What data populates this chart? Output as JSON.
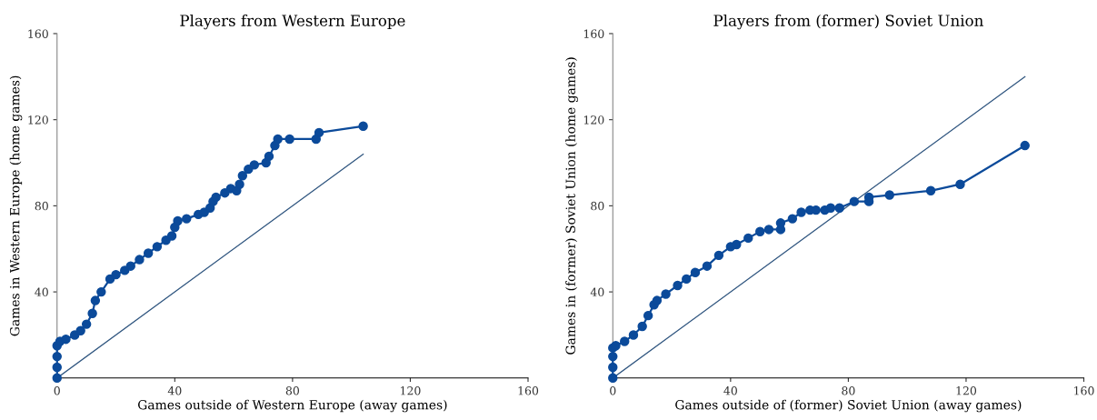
{
  "chart_data": [
    {
      "type": "line",
      "title": "Players from Western Europe",
      "xlabel": "Games outside of Western Europe (away games)",
      "ylabel": "Games in Western Europe (home games)",
      "xlim": [
        0,
        160
      ],
      "ylim": [
        0,
        160
      ],
      "xticks": [
        0,
        40,
        80,
        120,
        160
      ],
      "yticks": [
        40,
        80,
        120,
        160
      ],
      "grid": false,
      "legend": false,
      "marker": "circle",
      "series": [
        {
          "color": "#0b4a9a",
          "x": [
            0,
            0,
            0,
            0,
            1,
            3,
            6,
            8,
            10,
            12,
            13,
            15,
            18,
            20,
            23,
            25,
            28,
            31,
            34,
            37,
            39,
            40,
            41,
            44,
            48,
            50,
            52,
            53,
            54,
            57,
            59,
            61,
            62,
            63,
            65,
            67,
            71,
            72,
            74,
            75,
            79,
            88,
            89,
            104
          ],
          "values": [
            0,
            5,
            10,
            15,
            17,
            18,
            20,
            22,
            25,
            30,
            36,
            40,
            46,
            48,
            50,
            52,
            55,
            58,
            61,
            64,
            66,
            70,
            73,
            74,
            76,
            77,
            79,
            82,
            84,
            86,
            88,
            87,
            90,
            94,
            97,
            99,
            100,
            103,
            108,
            111,
            111,
            111,
            114,
            117
          ]
        },
        {
          "color": "#2f557f",
          "marker": "none",
          "x": [
            0,
            104
          ],
          "values": [
            0,
            104
          ]
        }
      ]
    },
    {
      "type": "line",
      "title": "Players from (former) Soviet Union",
      "xlabel": "Games outside of (former) Soviet Union (away games)",
      "ylabel": "Games in (former) Soviet Union (home games)",
      "xlim": [
        0,
        160
      ],
      "ylim": [
        0,
        160
      ],
      "xticks": [
        0,
        40,
        80,
        120,
        160
      ],
      "yticks": [
        40,
        80,
        120,
        160
      ],
      "grid": false,
      "legend": false,
      "marker": "circle",
      "series": [
        {
          "color": "#0b4a9a",
          "x": [
            0,
            0,
            0,
            0,
            1,
            4,
            7,
            10,
            12,
            14,
            15,
            18,
            22,
            25,
            28,
            32,
            36,
            40,
            42,
            46,
            50,
            53,
            57,
            57,
            61,
            64,
            67,
            69,
            72,
            74,
            77,
            82,
            87,
            87,
            94,
            108,
            118,
            140
          ],
          "values": [
            0,
            5,
            10,
            14,
            15,
            17,
            20,
            24,
            29,
            34,
            36,
            39,
            43,
            46,
            49,
            52,
            57,
            61,
            62,
            65,
            68,
            69,
            69,
            72,
            74,
            77,
            78,
            78,
            78,
            79,
            79,
            82,
            82,
            84,
            85,
            87,
            90,
            108
          ]
        },
        {
          "color": "#2f557f",
          "marker": "none",
          "x": [
            0,
            140
          ],
          "values": [
            0,
            140
          ]
        }
      ]
    }
  ]
}
